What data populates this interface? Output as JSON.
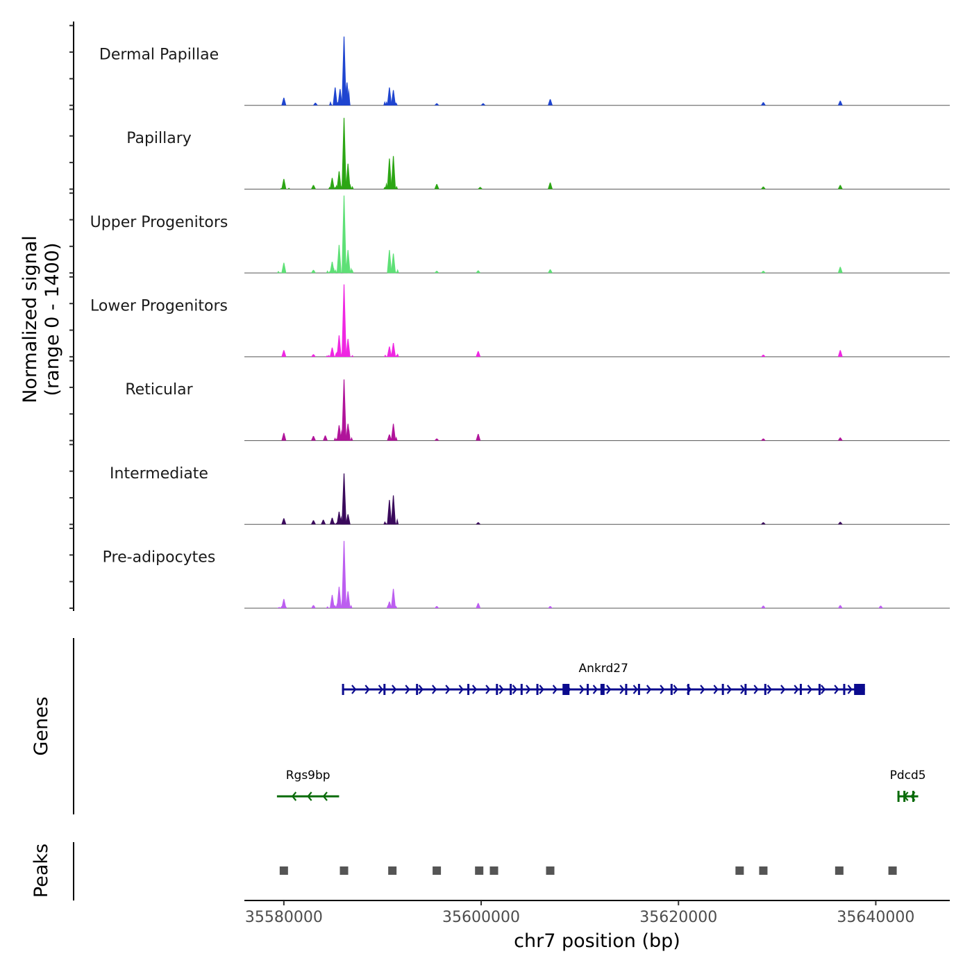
{
  "chart_data": {
    "type": "area",
    "title": "",
    "chromosome": "chr7",
    "xlabel": "chr7 position (bp)",
    "ylabel": "Normalized signal",
    "ylabel_range": "(range 0 - 1400)",
    "xlim": [
      35576000,
      35647500
    ],
    "ylim": [
      0,
      1400
    ],
    "x_ticks": [
      35580000,
      35600000,
      35620000,
      35640000
    ],
    "x_tick_labels": [
      "35580000",
      "35600000",
      "35620000",
      "35640000"
    ],
    "peak_positions": [
      35580000,
      35586100,
      35591000,
      35595500,
      35599800,
      35601300,
      35607000,
      35626200,
      35628600,
      35636300,
      35641700
    ],
    "tracks": [
      {
        "name": "Dermal Papillae",
        "color": "#1f45d0",
        "peaks": [
          [
            35580000,
            150
          ],
          [
            35583200,
            50
          ],
          [
            35585200,
            350
          ],
          [
            35585700,
            320
          ],
          [
            35586100,
            1350
          ],
          [
            35586400,
            450
          ],
          [
            35590700,
            350
          ],
          [
            35591100,
            300
          ],
          [
            35595500,
            25
          ],
          [
            35600200,
            25
          ],
          [
            35607000,
            120
          ],
          [
            35628600,
            60
          ],
          [
            35636400,
            90
          ]
        ]
      },
      {
        "name": "Papillary",
        "color": "#2ca614",
        "peaks": [
          [
            35580000,
            200
          ],
          [
            35583000,
            80
          ],
          [
            35584900,
            220
          ],
          [
            35585600,
            350
          ],
          [
            35586100,
            1400
          ],
          [
            35586500,
            500
          ],
          [
            35590700,
            600
          ],
          [
            35591100,
            650
          ],
          [
            35595500,
            100
          ],
          [
            35599900,
            40
          ],
          [
            35607000,
            130
          ],
          [
            35628600,
            50
          ],
          [
            35636400,
            80
          ]
        ]
      },
      {
        "name": "Upper Progenitors",
        "color": "#5ee076",
        "peaks": [
          [
            35580000,
            200
          ],
          [
            35583000,
            60
          ],
          [
            35584900,
            220
          ],
          [
            35585600,
            550
          ],
          [
            35586100,
            1520
          ],
          [
            35586500,
            450
          ],
          [
            35590700,
            450
          ],
          [
            35591100,
            380
          ],
          [
            35595500,
            30
          ],
          [
            35599700,
            50
          ],
          [
            35607000,
            70
          ],
          [
            35628600,
            40
          ],
          [
            35636400,
            120
          ]
        ]
      },
      {
        "name": "Lower Progenitors",
        "color": "#ef27e2",
        "peaks": [
          [
            35580000,
            130
          ],
          [
            35583000,
            50
          ],
          [
            35584900,
            180
          ],
          [
            35585600,
            420
          ],
          [
            35586100,
            1420
          ],
          [
            35586500,
            350
          ],
          [
            35590700,
            200
          ],
          [
            35591100,
            270
          ],
          [
            35599700,
            110
          ],
          [
            35628600,
            40
          ],
          [
            35636400,
            130
          ]
        ]
      },
      {
        "name": "Reticular",
        "color": "#b0149a",
        "peaks": [
          [
            35580000,
            150
          ],
          [
            35583000,
            90
          ],
          [
            35584200,
            100
          ],
          [
            35585600,
            300
          ],
          [
            35586100,
            1200
          ],
          [
            35586500,
            330
          ],
          [
            35590700,
            120
          ],
          [
            35591100,
            330
          ],
          [
            35595500,
            30
          ],
          [
            35599700,
            130
          ],
          [
            35628600,
            40
          ],
          [
            35636400,
            60
          ]
        ]
      },
      {
        "name": "Intermediate",
        "color": "#3a0a5c",
        "peaks": [
          [
            35580000,
            120
          ],
          [
            35583000,
            80
          ],
          [
            35584000,
            90
          ],
          [
            35584900,
            130
          ],
          [
            35585600,
            250
          ],
          [
            35586100,
            1000
          ],
          [
            35586500,
            200
          ],
          [
            35590700,
            480
          ],
          [
            35591100,
            570
          ],
          [
            35599700,
            40
          ],
          [
            35628600,
            40
          ],
          [
            35636400,
            50
          ]
        ]
      },
      {
        "name": "Pre-adipocytes",
        "color": "#bc5ef0",
        "peaks": [
          [
            35580000,
            180
          ],
          [
            35583000,
            60
          ],
          [
            35584900,
            260
          ],
          [
            35585600,
            420
          ],
          [
            35586100,
            1320
          ],
          [
            35586500,
            330
          ],
          [
            35590700,
            130
          ],
          [
            35591100,
            380
          ],
          [
            35595500,
            40
          ],
          [
            35599700,
            100
          ],
          [
            35607000,
            40
          ],
          [
            35628600,
            50
          ],
          [
            35636400,
            60
          ],
          [
            35640500,
            50
          ]
        ]
      }
    ],
    "genes": [
      {
        "name": "Ankrd27",
        "color": "#0b0b8e",
        "strand": "+",
        "start": 35585900,
        "end": 35638900,
        "row": 1,
        "exons": [
          35586000,
          35590200,
          35593500,
          35598700,
          35601600,
          35603000,
          35604100,
          35605700,
          35608600,
          35610800,
          35612300,
          35614700,
          35616000,
          35619300,
          35621000,
          35624500,
          35626800,
          35628800,
          35632400,
          35634300,
          35636800,
          35638600
        ]
      },
      {
        "name": "Rgs9bp",
        "color": "#0a6b0a",
        "strand": "-",
        "start": 35579300,
        "end": 35585600,
        "row": 2,
        "exons": []
      },
      {
        "name": "Pdcd5",
        "color": "#0a6b0a",
        "strand": "-",
        "start": 35642200,
        "end": 35644300,
        "row": 2,
        "exons": [
          35642300,
          35642900,
          35643800
        ]
      }
    ],
    "section_labels": {
      "genes": "Genes",
      "peaks": "Peaks"
    }
  }
}
